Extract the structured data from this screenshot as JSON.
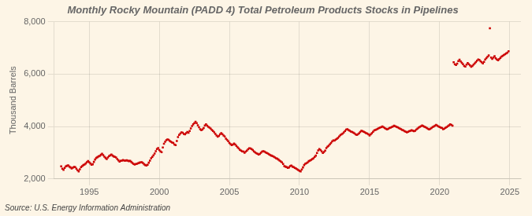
{
  "chart_data": {
    "type": "scatter",
    "title": "Monthly Rocky Mountain (PADD 4) Total Petroleum Products Stocks in Pipelines",
    "ylabel": "Thousand Barrels",
    "annotations": [
      "Source: U.S. Energy Information Administration"
    ],
    "color": "#cc0000",
    "marker": "square",
    "grid": true,
    "xlim": [
      1992.5,
      2025.8
    ],
    "xticks": [
      1995,
      2000,
      2005,
      2010,
      2015,
      2020,
      2025
    ],
    "ylim": [
      2000,
      8000
    ],
    "yticks": [
      {
        "value": 2000,
        "label": "2,000"
      },
      {
        "value": 4000,
        "label": "4,000"
      },
      {
        "value": 6000,
        "label": "6,000"
      },
      {
        "value": 8000,
        "label": "8,000"
      }
    ],
    "x": [
      1993,
      1993.0833,
      1993.1667,
      1993.25,
      1993.3333,
      1993.4167,
      1993.5,
      1993.5833,
      1993.6667,
      1993.75,
      1993.8333,
      1993.9167,
      1994,
      1994.0833,
      1994.1667,
      1994.25,
      1994.3333,
      1994.4167,
      1994.5,
      1994.5833,
      1994.6667,
      1994.75,
      1994.8333,
      1994.9167,
      1995,
      1995.0833,
      1995.1667,
      1995.25,
      1995.3333,
      1995.4167,
      1995.5,
      1995.5833,
      1995.6667,
      1995.75,
      1995.8333,
      1995.9167,
      1996,
      1996.0833,
      1996.1667,
      1996.25,
      1996.3333,
      1996.4167,
      1996.5,
      1996.5833,
      1996.6667,
      1996.75,
      1996.8333,
      1996.9167,
      1997,
      1997.0833,
      1997.1667,
      1997.25,
      1997.3333,
      1997.4167,
      1997.5,
      1997.5833,
      1997.6667,
      1997.75,
      1997.8333,
      1997.9167,
      1998,
      1998.0833,
      1998.1667,
      1998.25,
      1998.3333,
      1998.4167,
      1998.5,
      1998.5833,
      1998.6667,
      1998.75,
      1998.8333,
      1998.9167,
      1999,
      1999.0833,
      1999.1667,
      1999.25,
      1999.3333,
      1999.4167,
      1999.5,
      1999.5833,
      1999.6667,
      1999.75,
      1999.8333,
      1999.9167,
      2000,
      2000.0833,
      2000.1667,
      2000.25,
      2000.3333,
      2000.4167,
      2000.5,
      2000.5833,
      2000.6667,
      2000.75,
      2000.8333,
      2000.9167,
      2001,
      2001.0833,
      2001.1667,
      2001.25,
      2001.3333,
      2001.4167,
      2001.5,
      2001.5833,
      2001.6667,
      2001.75,
      2001.8333,
      2001.9167,
      2002,
      2002.0833,
      2002.1667,
      2002.25,
      2002.3333,
      2002.4167,
      2002.5,
      2002.5833,
      2002.6667,
      2002.75,
      2002.8333,
      2002.9167,
      2003,
      2003.0833,
      2003.1667,
      2003.25,
      2003.3333,
      2003.4167,
      2003.5,
      2003.5833,
      2003.6667,
      2003.75,
      2003.8333,
      2003.9167,
      2004,
      2004.0833,
      2004.1667,
      2004.25,
      2004.3333,
      2004.4167,
      2004.5,
      2004.5833,
      2004.6667,
      2004.75,
      2004.8333,
      2004.9167,
      2005,
      2005.0833,
      2005.1667,
      2005.25,
      2005.3333,
      2005.4167,
      2005.5,
      2005.5833,
      2005.6667,
      2005.75,
      2005.8333,
      2005.9167,
      2006,
      2006.0833,
      2006.1667,
      2006.25,
      2006.3333,
      2006.4167,
      2006.5,
      2006.5833,
      2006.6667,
      2006.75,
      2006.8333,
      2006.9167,
      2007,
      2007.0833,
      2007.1667,
      2007.25,
      2007.3333,
      2007.4167,
      2007.5,
      2007.5833,
      2007.6667,
      2007.75,
      2007.8333,
      2007.9167,
      2008,
      2008.0833,
      2008.1667,
      2008.25,
      2008.3333,
      2008.4167,
      2008.5,
      2008.5833,
      2008.6667,
      2008.75,
      2008.8333,
      2008.9167,
      2009,
      2009.0833,
      2009.1667,
      2009.25,
      2009.3333,
      2009.4167,
      2009.5,
      2009.5833,
      2009.6667,
      2009.75,
      2009.8333,
      2009.9167,
      2010,
      2010.0833,
      2010.1667,
      2010.25,
      2010.3333,
      2010.4167,
      2010.5,
      2010.5833,
      2010.6667,
      2010.75,
      2010.8333,
      2010.9167,
      2011,
      2011.0833,
      2011.1667,
      2011.25,
      2011.3333,
      2011.4167,
      2011.5,
      2011.5833,
      2011.6667,
      2011.75,
      2011.8333,
      2011.9167,
      2012,
      2012.0833,
      2012.1667,
      2012.25,
      2012.3333,
      2012.4167,
      2012.5,
      2012.5833,
      2012.6667,
      2012.75,
      2012.8333,
      2012.9167,
      2013,
      2013.0833,
      2013.1667,
      2013.25,
      2013.3333,
      2013.4167,
      2013.5,
      2013.5833,
      2013.6667,
      2013.75,
      2013.8333,
      2013.9167,
      2014,
      2014.0833,
      2014.1667,
      2014.25,
      2014.3333,
      2014.4167,
      2014.5,
      2014.5833,
      2014.6667,
      2014.75,
      2014.8333,
      2014.9167,
      2015,
      2015.0833,
      2015.1667,
      2015.25,
      2015.3333,
      2015.4167,
      2015.5,
      2015.5833,
      2015.6667,
      2015.75,
      2015.8333,
      2015.9167,
      2016,
      2016.0833,
      2016.1667,
      2016.25,
      2016.3333,
      2016.4167,
      2016.5,
      2016.5833,
      2016.6667,
      2016.75,
      2016.8333,
      2016.9167,
      2017,
      2017.0833,
      2017.1667,
      2017.25,
      2017.3333,
      2017.4167,
      2017.5,
      2017.5833,
      2017.6667,
      2017.75,
      2017.8333,
      2017.9167,
      2018,
      2018.0833,
      2018.1667,
      2018.25,
      2018.3333,
      2018.4167,
      2018.5,
      2018.5833,
      2018.6667,
      2018.75,
      2018.8333,
      2018.9167,
      2019,
      2019.0833,
      2019.1667,
      2019.25,
      2019.3333,
      2019.4167,
      2019.5,
      2019.5833,
      2019.6667,
      2019.75,
      2019.8333,
      2019.9167,
      2020,
      2020.0833,
      2020.1667,
      2020.25,
      2020.3333,
      2020.4167,
      2020.5,
      2020.5833,
      2020.6667,
      2020.75,
      2020.8333,
      2020.9167,
      2021,
      2021.0833,
      2021.1667,
      2021.25,
      2021.3333,
      2021.4167,
      2021.5,
      2021.5833,
      2021.6667,
      2021.75,
      2021.8333,
      2021.9167,
      2022,
      2022.0833,
      2022.1667,
      2022.25,
      2022.3333,
      2022.4167,
      2022.5,
      2022.5833,
      2022.6667,
      2022.75,
      2022.8333,
      2022.9167,
      2023,
      2023.0833,
      2023.1667,
      2023.25,
      2023.3333,
      2023.4167,
      2023.5,
      2023.5833,
      2023.6667,
      2023.75,
      2023.8333,
      2023.9167,
      2024,
      2024.0833,
      2024.1667,
      2024.25,
      2024.3333,
      2024.4167,
      2024.5,
      2024.5833,
      2024.6667,
      2024.75,
      2024.8333,
      2024.9167
    ],
    "values": [
      2480,
      2390,
      2350,
      2420,
      2480,
      2500,
      2520,
      2470,
      2440,
      2400,
      2430,
      2460,
      2450,
      2390,
      2330,
      2290,
      2370,
      2450,
      2490,
      2530,
      2550,
      2590,
      2640,
      2680,
      2640,
      2590,
      2540,
      2560,
      2650,
      2740,
      2800,
      2830,
      2860,
      2880,
      2920,
      2960,
      2910,
      2850,
      2800,
      2760,
      2820,
      2870,
      2900,
      2930,
      2890,
      2860,
      2840,
      2820,
      2760,
      2710,
      2660,
      2690,
      2700,
      2720,
      2700,
      2700,
      2710,
      2700,
      2680,
      2690,
      2650,
      2610,
      2570,
      2550,
      2570,
      2580,
      2600,
      2620,
      2630,
      2640,
      2610,
      2560,
      2530,
      2510,
      2540,
      2620,
      2700,
      2790,
      2840,
      2900,
      2970,
      3060,
      3140,
      3180,
      3100,
      3050,
      3020,
      3200,
      3340,
      3420,
      3480,
      3510,
      3490,
      3450,
      3420,
      3390,
      3370,
      3310,
      3290,
      3450,
      3600,
      3680,
      3730,
      3780,
      3760,
      3720,
      3700,
      3750,
      3790,
      3760,
      3830,
      3930,
      4020,
      4080,
      4130,
      4180,
      4130,
      4050,
      3970,
      3900,
      3860,
      3890,
      3940,
      4040,
      4080,
      4030,
      3990,
      3960,
      3920,
      3870,
      3830,
      3780,
      3720,
      3660,
      3610,
      3640,
      3700,
      3750,
      3710,
      3660,
      3620,
      3540,
      3490,
      3440,
      3370,
      3330,
      3290,
      3310,
      3350,
      3310,
      3260,
      3210,
      3160,
      3110,
      3080,
      3050,
      3040,
      3000,
      3040,
      3080,
      3130,
      3170,
      3160,
      3140,
      3100,
      3050,
      3010,
      2980,
      2960,
      2930,
      2950,
      3000,
      3040,
      3060,
      3040,
      3010,
      2990,
      2970,
      2940,
      2910,
      2890,
      2870,
      2850,
      2820,
      2790,
      2770,
      2740,
      2700,
      2670,
      2630,
      2570,
      2490,
      2470,
      2450,
      2420,
      2440,
      2490,
      2510,
      2470,
      2450,
      2420,
      2400,
      2370,
      2340,
      2310,
      2290,
      2360,
      2440,
      2530,
      2580,
      2600,
      2630,
      2680,
      2700,
      2730,
      2760,
      2790,
      2840,
      2890,
      2990,
      3090,
      3140,
      3100,
      3050,
      2990,
      3030,
      3080,
      3180,
      3230,
      3270,
      3320,
      3370,
      3430,
      3470,
      3460,
      3500,
      3530,
      3570,
      3620,
      3670,
      3700,
      3730,
      3780,
      3830,
      3880,
      3900,
      3870,
      3840,
      3810,
      3790,
      3770,
      3740,
      3700,
      3680,
      3700,
      3740,
      3790,
      3840,
      3820,
      3800,
      3780,
      3750,
      3730,
      3700,
      3660,
      3700,
      3750,
      3800,
      3850,
      3870,
      3890,
      3910,
      3940,
      3960,
      3980,
      4000,
      3970,
      3940,
      3910,
      3890,
      3910,
      3940,
      3960,
      3980,
      4000,
      4030,
      4010,
      3990,
      3970,
      3940,
      3920,
      3900,
      3870,
      3850,
      3820,
      3800,
      3780,
      3800,
      3820,
      3840,
      3860,
      3840,
      3820,
      3840,
      3880,
      3920,
      3960,
      3990,
      4010,
      4040,
      4020,
      3990,
      3970,
      3940,
      3910,
      3890,
      3910,
      3940,
      3980,
      4000,
      4030,
      4060,
      4030,
      4000,
      3980,
      3960,
      3940,
      3900,
      3920,
      3950,
      3980,
      4010,
      4050,
      4080,
      4060,
      4030,
      6450,
      6380,
      6350,
      6400,
      6500,
      6550,
      6480,
      6430,
      6380,
      6310,
      6290,
      6360,
      6420,
      6380,
      6330,
      6280,
      6310,
      6360,
      6410,
      6460,
      6510,
      6560,
      6540,
      6490,
      6450,
      6410,
      6470,
      6560,
      6610,
      6660,
      6710,
      7750,
      6630,
      6580,
      6630,
      6680,
      6600,
      6560,
      6530,
      6570,
      6620,
      6670,
      6700,
      6730,
      6760,
      6790,
      6820,
      6870
    ]
  }
}
